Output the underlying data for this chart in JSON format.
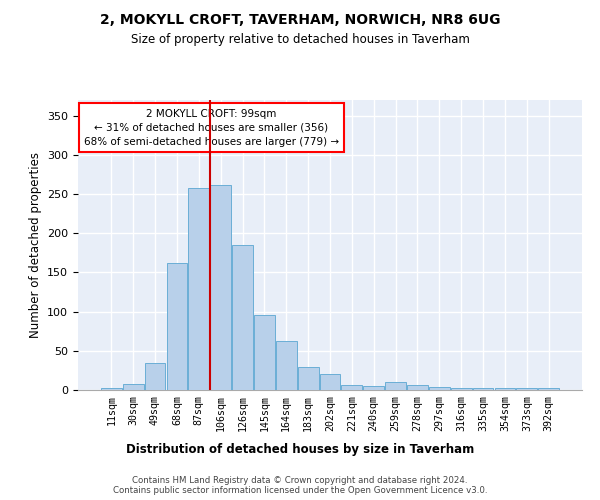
{
  "title": "2, MOKYLL CROFT, TAVERHAM, NORWICH, NR8 6UG",
  "subtitle": "Size of property relative to detached houses in Taverham",
  "xlabel": "Distribution of detached houses by size in Taverham",
  "ylabel": "Number of detached properties",
  "categories": [
    "11sqm",
    "30sqm",
    "49sqm",
    "68sqm",
    "87sqm",
    "106sqm",
    "126sqm",
    "145sqm",
    "164sqm",
    "183sqm",
    "202sqm",
    "221sqm",
    "240sqm",
    "259sqm",
    "278sqm",
    "297sqm",
    "316sqm",
    "335sqm",
    "354sqm",
    "373sqm",
    "392sqm"
  ],
  "bar_heights": [
    2,
    8,
    35,
    162,
    258,
    262,
    185,
    96,
    63,
    29,
    20,
    6,
    5,
    10,
    6,
    4,
    3,
    3,
    2,
    3,
    3
  ],
  "bar_color": "#b8d0ea",
  "bar_edge_color": "#6aaed6",
  "vline_x": 4.5,
  "vline_color": "#cc0000",
  "annotation_text": "2 MOKYLL CROFT: 99sqm\n← 31% of detached houses are smaller (356)\n68% of semi-detached houses are larger (779) →",
  "ylim_max": 370,
  "yticks": [
    0,
    50,
    100,
    150,
    200,
    250,
    300,
    350
  ],
  "footer_line1": "Contains HM Land Registry data © Crown copyright and database right 2024.",
  "footer_line2": "Contains public sector information licensed under the Open Government Licence v3.0.",
  "bg_color": "#e8eef8",
  "grid_color": "#ffffff"
}
